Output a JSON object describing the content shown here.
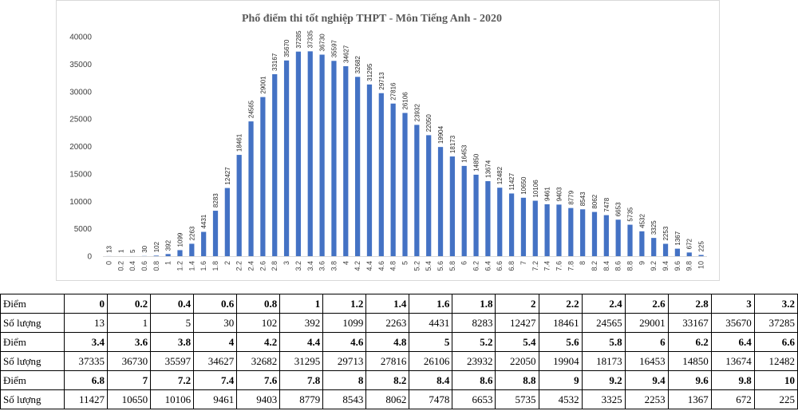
{
  "chart_data": {
    "type": "bar",
    "title": "Phổ điểm thi tốt nghiệp THPT - Môn Tiếng Anh - 2020",
    "categories": [
      "0",
      "0.2",
      "0.4",
      "0.6",
      "0.8",
      "1",
      "1.2",
      "1.4",
      "1.6",
      "1.8",
      "2",
      "2.2",
      "2.4",
      "2.6",
      "2.8",
      "3",
      "3.2",
      "3.4",
      "3.6",
      "3.8",
      "4",
      "4.2",
      "4.4",
      "4.6",
      "4.8",
      "5",
      "5.2",
      "5.4",
      "5.6",
      "5.8",
      "6",
      "6.2",
      "6.4",
      "6.6",
      "6.8",
      "7",
      "7.2",
      "7.4",
      "7.6",
      "7.8",
      "8",
      "8.2",
      "8.4",
      "8.6",
      "8.8",
      "9",
      "9.2",
      "9.4",
      "9.6",
      "9.8",
      "10"
    ],
    "values": [
      13,
      1,
      5,
      30,
      102,
      392,
      1099,
      2263,
      4431,
      8283,
      12427,
      18461,
      24565,
      29001,
      33167,
      35670,
      37285,
      37335,
      36730,
      35597,
      34627,
      32682,
      31295,
      29713,
      27816,
      26106,
      23932,
      22050,
      19904,
      18173,
      16453,
      14850,
      13674,
      12482,
      11427,
      10650,
      10106,
      9461,
      9403,
      8779,
      8543,
      8062,
      7478,
      6653,
      5735,
      4532,
      3325,
      2253,
      1367,
      672,
      225
    ],
    "yticks": [
      0,
      5000,
      10000,
      15000,
      20000,
      25000,
      30000,
      35000,
      40000
    ],
    "ylim": [
      0,
      40000
    ],
    "xlabel": "",
    "ylabel": "",
    "bar_color": "#4472c4",
    "grid": false,
    "legend": false
  },
  "table": {
    "score_label": "Điểm",
    "count_label": "Số lượng",
    "blocks": [
      {
        "scores": [
          "0",
          "0.2",
          "0.4",
          "0.6",
          "0.8",
          "1",
          "1.2",
          "1.4",
          "1.6",
          "1.8",
          "2",
          "2.2",
          "2.4",
          "2.6",
          "2.8",
          "3",
          "3.2"
        ],
        "counts": [
          "13",
          "1",
          "5",
          "30",
          "102",
          "392",
          "1099",
          "2263",
          "4431",
          "8283",
          "12427",
          "18461",
          "24565",
          "29001",
          "33167",
          "35670",
          "37285"
        ]
      },
      {
        "scores": [
          "3.4",
          "3.6",
          "3.8",
          "4",
          "4.2",
          "4.4",
          "4.6",
          "4.8",
          "5",
          "5.2",
          "5.4",
          "5.6",
          "5.8",
          "6",
          "6.2",
          "6.4",
          "6.6"
        ],
        "counts": [
          "37335",
          "36730",
          "35597",
          "34627",
          "32682",
          "31295",
          "29713",
          "27816",
          "26106",
          "23932",
          "22050",
          "19904",
          "18173",
          "16453",
          "14850",
          "13674",
          "12482"
        ]
      },
      {
        "scores": [
          "6.8",
          "7",
          "7.2",
          "7.4",
          "7.6",
          "7.8",
          "8",
          "8.2",
          "8.4",
          "8.6",
          "8.8",
          "9",
          "9.2",
          "9.4",
          "9.6",
          "9.8",
          "10"
        ],
        "counts": [
          "11427",
          "10650",
          "10106",
          "9461",
          "9403",
          "8779",
          "8543",
          "8062",
          "7478",
          "6653",
          "5735",
          "4532",
          "3325",
          "2253",
          "1367",
          "672",
          "225"
        ]
      }
    ]
  }
}
